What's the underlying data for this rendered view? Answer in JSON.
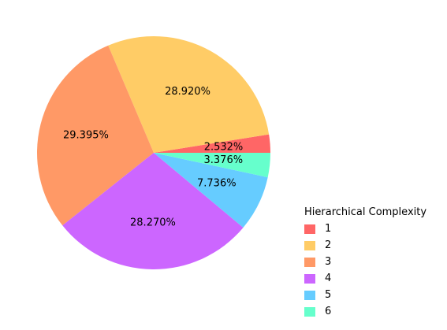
{
  "chart_data": {
    "type": "pie",
    "legend_title": "Hierarchical Complexity",
    "legend_position": "bottom-right",
    "labels": [
      "1",
      "2",
      "3",
      "4",
      "5",
      "6"
    ],
    "values": [
      2.532,
      28.92,
      29.395,
      28.27,
      7.736,
      3.376
    ],
    "value_labels": [
      "2.532%",
      "28.920%",
      "29.395%",
      "28.270%",
      "7.736%",
      "3.376%"
    ],
    "colors": [
      "#ff6666",
      "#ffcc66",
      "#ff9966",
      "#cc66ff",
      "#66ccff",
      "#66ffcc"
    ],
    "start_angle_deg": 0,
    "direction": "counterclockwise"
  }
}
